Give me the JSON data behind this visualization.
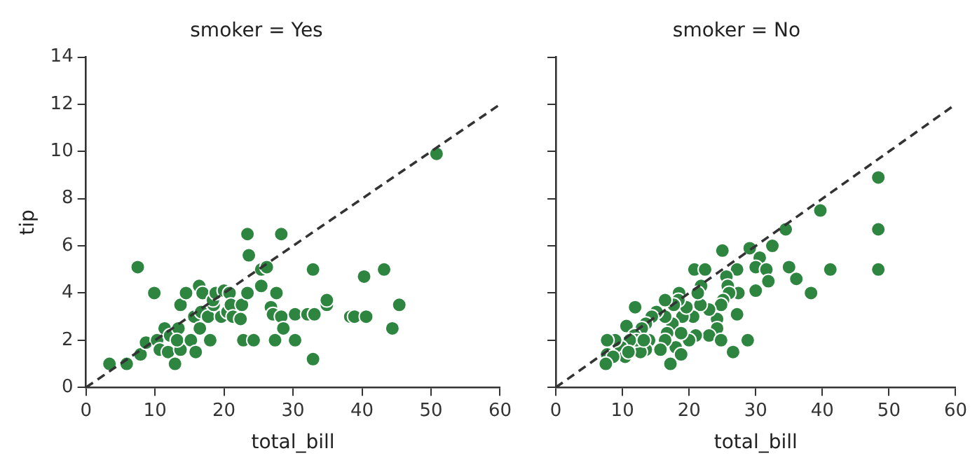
{
  "chart_data": [
    {
      "type": "scatter",
      "title": "smoker = Yes",
      "xlabel": "total_bill",
      "ylabel": "tip",
      "xlim": [
        0,
        60
      ],
      "ylim": [
        0,
        14
      ],
      "xticks": [
        0,
        10,
        20,
        30,
        40,
        50,
        60
      ],
      "yticks": [
        0,
        2,
        4,
        6,
        8,
        10,
        12,
        14
      ],
      "grid": false,
      "legend": false,
      "marker": "circle",
      "series": [
        {
          "type": "scatter",
          "color": "#2e8540",
          "x": [
            50.8,
            3.4,
            5.9,
            7.9,
            7.5,
            9.9,
            8.7,
            10.3,
            11.4,
            10.7,
            11.9,
            12.2,
            12.9,
            13.4,
            13.7,
            13.7,
            13.2,
            14.5,
            15.2,
            15.7,
            15.9,
            16.5,
            16.4,
            16.7,
            16.9,
            18.0,
            17.7,
            18.5,
            18.4,
            18.8,
            19.6,
            20.0,
            20.8,
            20.5,
            21.0,
            21.3,
            22.4,
            22.6,
            22.8,
            24.3,
            23.4,
            23.4,
            23.6,
            25.4,
            26.2,
            25.4,
            26.8,
            27.1,
            27.6,
            27.4,
            28.3,
            28.6,
            28.3,
            30.3,
            30.3,
            32.1,
            33.1,
            32.9,
            32.9,
            34.9,
            34.9,
            38.3,
            38.9,
            40.6,
            40.3,
            43.2,
            44.4,
            45.4
          ],
          "values": [
            9.9,
            1.0,
            1.0,
            1.4,
            5.1,
            4.0,
            1.9,
            2.0,
            2.5,
            1.6,
            1.5,
            2.2,
            1.0,
            2.5,
            3.5,
            1.6,
            2.0,
            4.0,
            2.0,
            3.0,
            1.5,
            2.5,
            4.3,
            3.2,
            4.0,
            2.0,
            3.0,
            3.5,
            3.7,
            4.0,
            3.0,
            4.1,
            4.0,
            3.2,
            3.5,
            3.0,
            2.9,
            3.5,
            2.0,
            2.0,
            4.0,
            6.5,
            5.6,
            5.0,
            5.1,
            4.3,
            3.4,
            3.1,
            4.0,
            2.0,
            3.0,
            2.5,
            6.5,
            3.1,
            2.0,
            3.1,
            3.1,
            5.0,
            1.2,
            3.5,
            3.7,
            3.0,
            3.0,
            3.0,
            4.7,
            5.0,
            2.5,
            3.5
          ]
        },
        {
          "type": "line",
          "color": "#333333",
          "line_style": "dashed",
          "marker": "none",
          "x": [
            0,
            60
          ],
          "values": [
            0,
            12
          ]
        }
      ]
    },
    {
      "type": "scatter",
      "title": "smoker = No",
      "xlabel": "total_bill",
      "xlim": [
        0,
        60
      ],
      "ylim": [
        0,
        14
      ],
      "xticks": [
        0,
        10,
        20,
        30,
        40,
        50,
        60
      ],
      "yticks": [
        0,
        2,
        4,
        6,
        8,
        10,
        12,
        14
      ],
      "tick_labels": "x",
      "grid": false,
      "legend": false,
      "marker": "circle",
      "series": [
        {
          "type": "scatter",
          "color": "#2e8540",
          "x": [
            48.4,
            48.4,
            48.4,
            39.7,
            34.5,
            32.5,
            30.6,
            29.1,
            25.0,
            20.8,
            22.4,
            27.2,
            30.0,
            31.6,
            35.0,
            36.1,
            41.2,
            38.3,
            31.9,
            30.0,
            27.4,
            25.6,
            25.8,
            26.0,
            25.1,
            24.8,
            27.2,
            24.2,
            24.2,
            23.0,
            24.8,
            28.8,
            26.6,
            23.0,
            21.7,
            21.8,
            21.3,
            20.6,
            21.0,
            20.0,
            19.0,
            19.6,
            18.5,
            18.4,
            17.7,
            17.5,
            18.8,
            18.0,
            18.8,
            17.2,
            16.4,
            16.4,
            16.7,
            16.4,
            15.7,
            15.1,
            14.4,
            13.5,
            12.9,
            14.0,
            13.5,
            12.7,
            11.9,
            10.6,
            11.8,
            12.1,
            11.1,
            9.8,
            10.4,
            10.9,
            8.9,
            7.7,
            7.7,
            8.6,
            7.5,
            13.2
          ],
          "values": [
            8.9,
            6.7,
            5.0,
            7.5,
            6.7,
            6.0,
            5.5,
            5.9,
            5.8,
            5.0,
            5.0,
            5.0,
            5.1,
            5.0,
            5.1,
            4.6,
            5.0,
            4.0,
            4.5,
            4.1,
            4.0,
            4.7,
            4.3,
            4.0,
            3.7,
            3.5,
            3.1,
            2.9,
            2.5,
            2.2,
            2.0,
            2.0,
            1.5,
            3.3,
            3.5,
            4.3,
            4.0,
            3.0,
            2.2,
            2.0,
            3.0,
            3.4,
            4.0,
            3.7,
            3.5,
            2.7,
            2.3,
            1.7,
            1.4,
            1.0,
            3.7,
            3.0,
            2.3,
            2.0,
            1.6,
            3.2,
            3.0,
            2.7,
            2.5,
            2.0,
            1.6,
            1.5,
            3.4,
            2.6,
            2.2,
            2.0,
            2.0,
            1.7,
            1.3,
            1.5,
            2.0,
            2.0,
            1.4,
            1.3,
            1.0,
            2.0
          ]
        },
        {
          "type": "line",
          "color": "#333333",
          "line_style": "dashed",
          "marker": "none",
          "x": [
            0,
            60
          ],
          "values": [
            0,
            12
          ]
        }
      ]
    }
  ]
}
